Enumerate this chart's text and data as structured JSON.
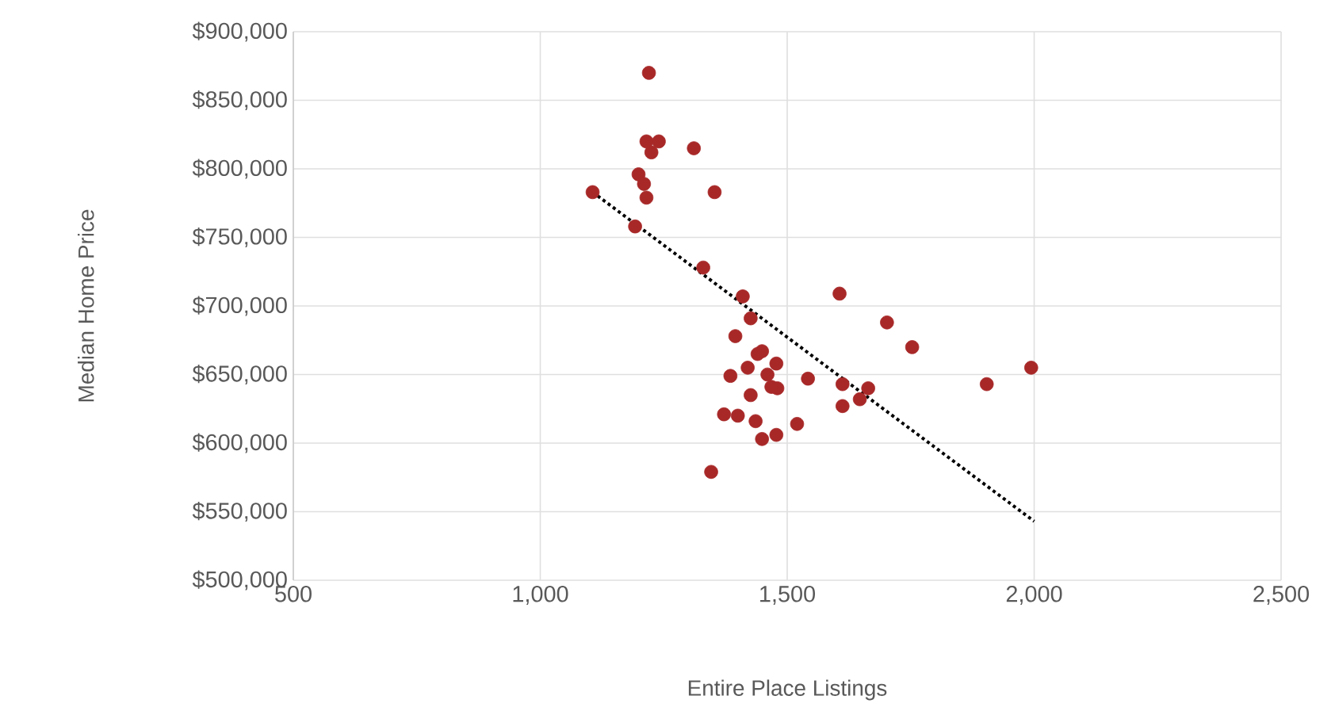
{
  "chart_data": {
    "type": "scatter",
    "xlabel": "Entire Place Listings",
    "ylabel": "Median Home Price",
    "xlim": [
      500,
      2500
    ],
    "xticks": [
      {
        "value": 500,
        "label": "500"
      },
      {
        "value": 1000,
        "label": "1,000"
      },
      {
        "value": 1500,
        "label": "1,500"
      },
      {
        "value": 2000,
        "label": "2,000"
      },
      {
        "value": 2500,
        "label": "2,500"
      }
    ],
    "ylim": [
      500000,
      900000
    ],
    "yticks": [
      {
        "value": 500000,
        "label": "$500,000"
      },
      {
        "value": 550000,
        "label": "$550,000"
      },
      {
        "value": 600000,
        "label": "$600,000"
      },
      {
        "value": 650000,
        "label": "$650,000"
      },
      {
        "value": 700000,
        "label": "$700,000"
      },
      {
        "value": 750000,
        "label": "$750,000"
      },
      {
        "value": 800000,
        "label": "$800,000"
      },
      {
        "value": 850000,
        "label": "$850,000"
      },
      {
        "value": 900000,
        "label": "$900,000"
      }
    ],
    "grid": true,
    "series": [
      {
        "marker": "circle",
        "color": "#a82828",
        "x": [
          1220,
          1215,
          1240,
          1225,
          1311,
          1199,
          1215,
          1210,
          1106,
          1353,
          1192,
          1330,
          1410,
          1426,
          1395,
          1449,
          1478,
          1385,
          1468,
          1426,
          1372,
          1436,
          1449,
          1478,
          1520,
          1346,
          1606,
          1702,
          1753,
          1542,
          1612,
          1612,
          1664,
          1647,
          1904,
          1994,
          1440,
          1460,
          1420,
          1480,
          1400
        ],
        "values": [
          870000,
          820000,
          820000,
          812000,
          815000,
          796000,
          779000,
          789000,
          783000,
          783000,
          758000,
          728000,
          707000,
          691000,
          678000,
          667000,
          658000,
          649000,
          641000,
          635000,
          621000,
          616000,
          603000,
          606000,
          614000,
          579000,
          709000,
          688000,
          670000,
          647000,
          643000,
          627000,
          640000,
          632000,
          643000,
          655000,
          665000,
          650000,
          655000,
          640000,
          620000
        ]
      },
      {
        "type": "line",
        "marker": "none",
        "line_style": "dotted",
        "color": "#000000",
        "x": [
          1106,
          2000
        ],
        "values": [
          783000,
          543000
        ]
      }
    ]
  }
}
